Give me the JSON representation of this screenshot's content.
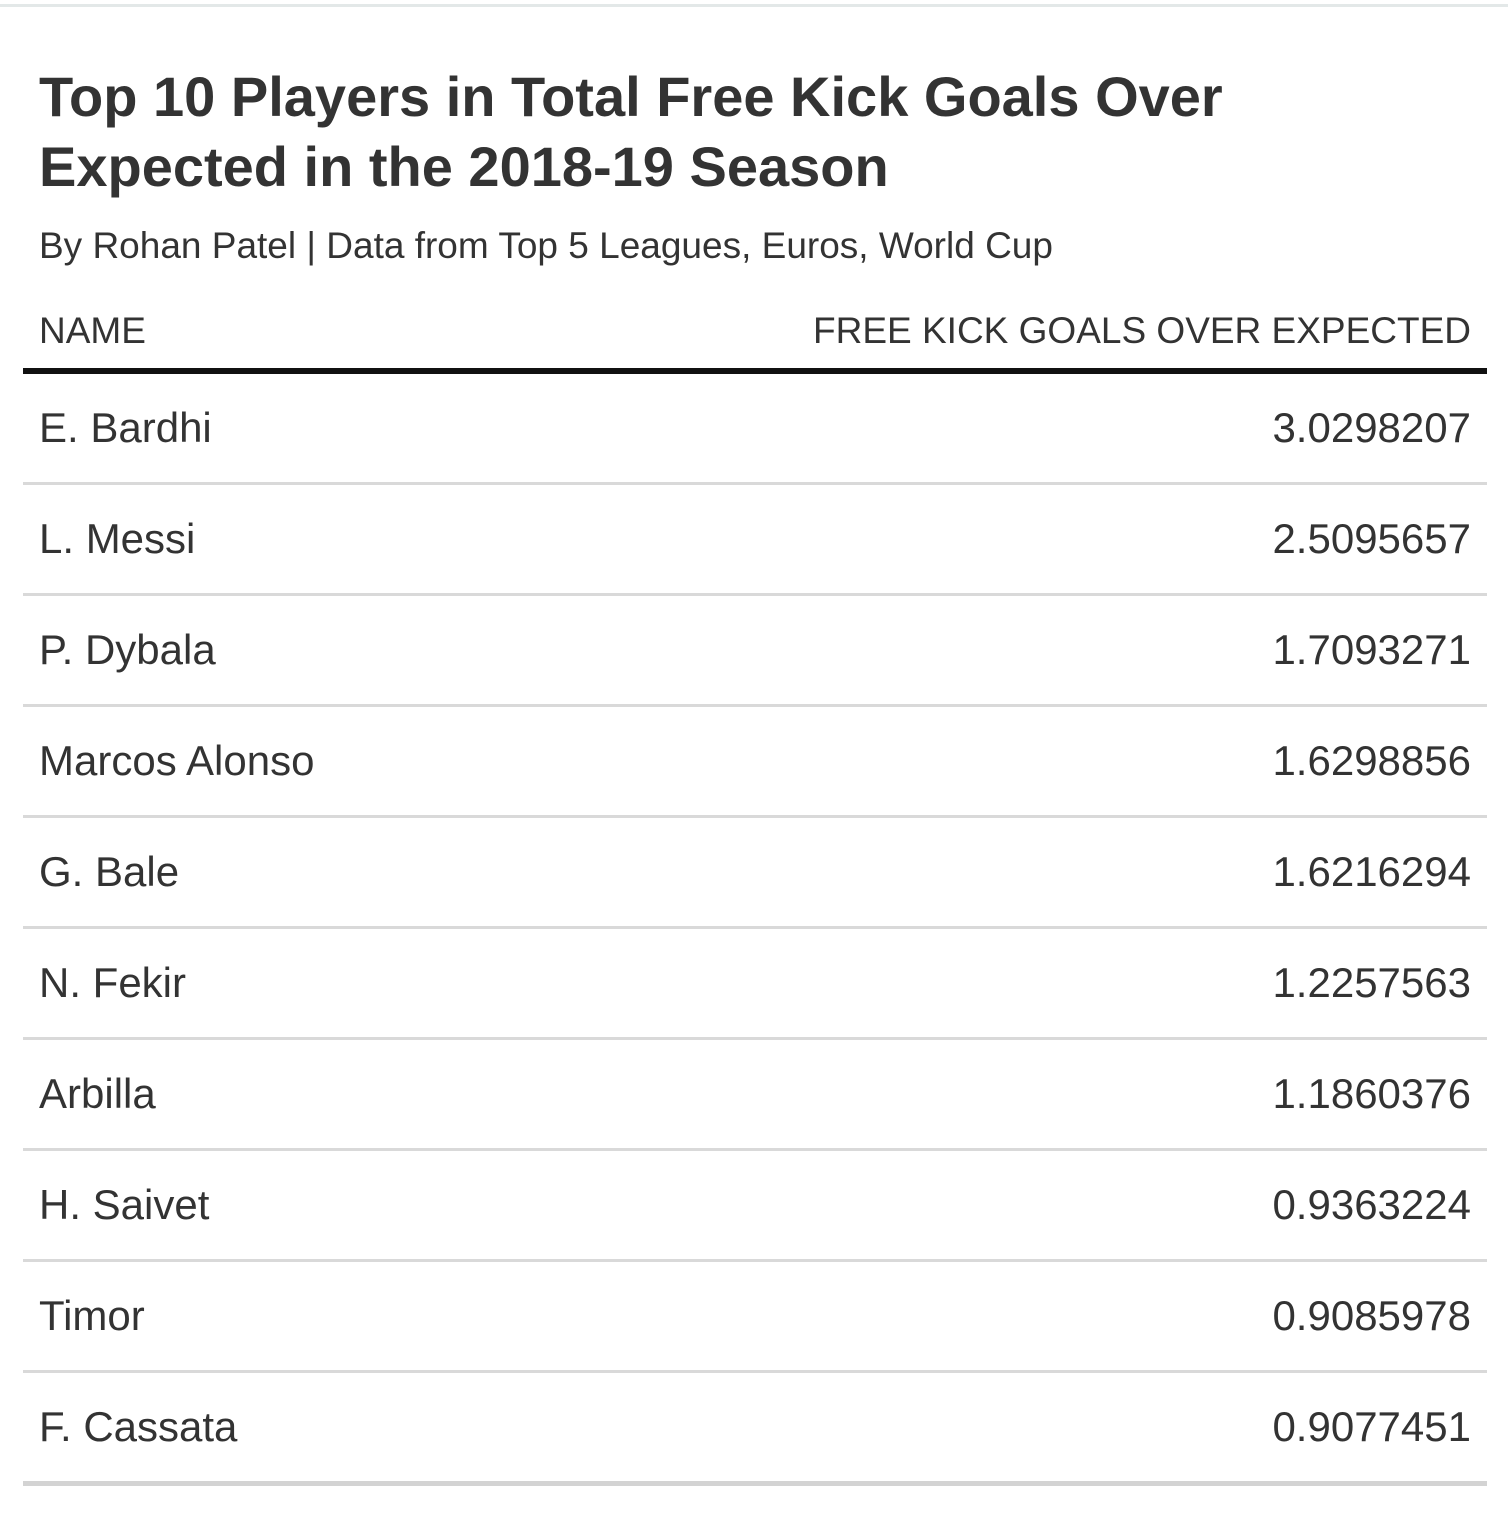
{
  "chart_data": {
    "type": "table",
    "title": "Top 10 Players in Total Free Kick Goals Over Expected in the 2018-19 Season",
    "subtitle": "By Rohan Patel | Data from Top 5 Leagues, Euros, World Cup",
    "columns": [
      "NAME",
      "FREE KICK GOALS OVER EXPECTED"
    ],
    "rows": [
      {
        "name": "E. Bardhi",
        "value": "3.0298207"
      },
      {
        "name": "L. Messi",
        "value": "2.5095657"
      },
      {
        "name": "P. Dybala",
        "value": "1.7093271"
      },
      {
        "name": "Marcos Alonso",
        "value": "1.6298856"
      },
      {
        "name": "G. Bale",
        "value": "1.6216294"
      },
      {
        "name": "N. Fekir",
        "value": "1.2257563"
      },
      {
        "name": "Arbilla",
        "value": "1.1860376"
      },
      {
        "name": "H. Saivet",
        "value": "0.9363224"
      },
      {
        "name": "Timor",
        "value": "0.9085978"
      },
      {
        "name": "F. Cassata",
        "value": "0.9077451"
      }
    ]
  },
  "colors": {
    "text": "#333333",
    "header_rule": "#111111",
    "row_rule": "#d9d9d9",
    "top_rule": "#e3e8e8"
  }
}
